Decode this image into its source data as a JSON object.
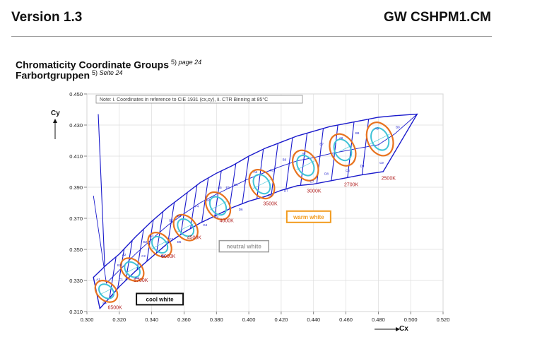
{
  "header": {
    "version": "Version 1.3",
    "document": "GW CSHPM1.CM"
  },
  "section": {
    "title_en": "Chromaticity Coordinate Groups",
    "ref_en_num": "5)",
    "ref_en_page": "page 24",
    "title_de": "Farbortgruppen",
    "ref_de_num": "5)",
    "ref_de_page": "Seite 24"
  },
  "chart_data": {
    "type": "scatter",
    "note": "Note: i. Coordinates in reference to CIE 1931 (cx,cy), ii. CTR Binning at 85°C",
    "xlabel": "Cx",
    "ylabel": "Cy",
    "xlim": [
      0.3,
      0.52
    ],
    "ylim": [
      0.31,
      0.45
    ],
    "x_ticks": [
      "0.300",
      "0.320",
      "0.340",
      "0.360",
      "0.380",
      "0.400",
      "0.420",
      "0.440",
      "0.460",
      "0.480",
      "0.500",
      "0.520"
    ],
    "y_ticks": [
      "0.310",
      "0.330",
      "0.350",
      "0.370",
      "0.390",
      "0.410",
      "0.430",
      "0.450"
    ],
    "grid": true,
    "colors": {
      "bin_outline": "#1a1acc",
      "outer_ellipse": "#e8731f",
      "inner_ellipse": "#3fc3d6",
      "label": "#b22222",
      "warm_box": "#f29b1e",
      "neutral_box": "#9a9a9a",
      "cool_box": "#111111"
    },
    "outline": {
      "top": [
        [
          0.304,
          0.332
        ],
        [
          0.312,
          0.34
        ],
        [
          0.32,
          0.347
        ],
        [
          0.33,
          0.358
        ],
        [
          0.34,
          0.368
        ],
        [
          0.35,
          0.377
        ],
        [
          0.36,
          0.385
        ],
        [
          0.37,
          0.393
        ],
        [
          0.38,
          0.399
        ],
        [
          0.39,
          0.404
        ],
        [
          0.4,
          0.41
        ],
        [
          0.41,
          0.415
        ],
        [
          0.42,
          0.419
        ],
        [
          0.43,
          0.423
        ],
        [
          0.44,
          0.426
        ],
        [
          0.45,
          0.429
        ],
        [
          0.46,
          0.431
        ],
        [
          0.47,
          0.433
        ],
        [
          0.48,
          0.435
        ],
        [
          0.49,
          0.436
        ],
        [
          0.504,
          0.437
        ]
      ],
      "bottom": [
        [
          0.308,
          0.312
        ],
        [
          0.315,
          0.32
        ],
        [
          0.32,
          0.326
        ],
        [
          0.33,
          0.336
        ],
        [
          0.34,
          0.345
        ],
        [
          0.35,
          0.354
        ],
        [
          0.36,
          0.361
        ],
        [
          0.37,
          0.367
        ],
        [
          0.38,
          0.372
        ],
        [
          0.39,
          0.377
        ],
        [
          0.4,
          0.381
        ],
        [
          0.41,
          0.384
        ],
        [
          0.42,
          0.388
        ],
        [
          0.43,
          0.391
        ],
        [
          0.44,
          0.392
        ],
        [
          0.45,
          0.394
        ],
        [
          0.46,
          0.396
        ],
        [
          0.47,
          0.398
        ],
        [
          0.483,
          0.4
        ],
        [
          0.504,
          0.437
        ]
      ]
    },
    "dividers_x": [
      0.311,
      0.318,
      0.323,
      0.328,
      0.335,
      0.341,
      0.347,
      0.354,
      0.362,
      0.368,
      0.375,
      0.383,
      0.392,
      0.4,
      0.409,
      0.418,
      0.427,
      0.436,
      0.446,
      0.455,
      0.465,
      0.474
    ],
    "groups": [
      {
        "cct": "6500K",
        "cx": 0.312,
        "cy": 0.323
      },
      {
        "cct": "5700K",
        "cx": 0.328,
        "cy": 0.337
      },
      {
        "cct": "5000K",
        "cx": 0.345,
        "cy": 0.353
      },
      {
        "cct": "4500K",
        "cx": 0.361,
        "cy": 0.364
      },
      {
        "cct": "4000K",
        "cx": 0.381,
        "cy": 0.378
      },
      {
        "cct": "3500K",
        "cx": 0.408,
        "cy": 0.392
      },
      {
        "cct": "3000K",
        "cx": 0.435,
        "cy": 0.404
      },
      {
        "cct": "2700K",
        "cx": 0.458,
        "cy": 0.414
      },
      {
        "cct": "2500K",
        "cx": 0.481,
        "cy": 0.421
      }
    ],
    "bin_labels": [
      {
        "t": "A1",
        "cx": 0.307,
        "cy": 0.33
      },
      {
        "t": "D1",
        "cx": 0.311,
        "cy": 0.315
      },
      {
        "t": "B1",
        "cx": 0.32,
        "cy": 0.339
      },
      {
        "t": "C1",
        "cx": 0.321,
        "cy": 0.33
      },
      {
        "t": "A2",
        "cx": 0.323,
        "cy": 0.346
      },
      {
        "t": "D2",
        "cx": 0.331,
        "cy": 0.331
      },
      {
        "t": "B2",
        "cx": 0.336,
        "cy": 0.354
      },
      {
        "t": "C2",
        "cx": 0.335,
        "cy": 0.345
      },
      {
        "t": "A3",
        "cx": 0.34,
        "cy": 0.358
      },
      {
        "t": "D3",
        "cx": 0.347,
        "cy": 0.345
      },
      {
        "t": "B3",
        "cx": 0.352,
        "cy": 0.368
      },
      {
        "t": "C3",
        "cx": 0.352,
        "cy": 0.356
      },
      {
        "t": "E4",
        "cx": 0.357,
        "cy": 0.371
      },
      {
        "t": "D5",
        "cx": 0.357,
        "cy": 0.354
      },
      {
        "t": "F4",
        "cx": 0.368,
        "cy": 0.377
      },
      {
        "t": "B4",
        "cx": 0.375,
        "cy": 0.381
      },
      {
        "t": "G4",
        "cx": 0.373,
        "cy": 0.365
      },
      {
        "t": "C4",
        "cx": 0.38,
        "cy": 0.37
      },
      {
        "t": "A5",
        "cx": 0.382,
        "cy": 0.389
      },
      {
        "t": "E5",
        "cx": 0.387,
        "cy": 0.389
      },
      {
        "t": "B5",
        "cx": 0.392,
        "cy": 0.391
      },
      {
        "t": "D6",
        "cx": 0.395,
        "cy": 0.375
      },
      {
        "t": "A6",
        "cx": 0.404,
        "cy": 0.399
      },
      {
        "t": "F6",
        "cx": 0.414,
        "cy": 0.4
      },
      {
        "t": "B6",
        "cx": 0.422,
        "cy": 0.407
      },
      {
        "t": "C6",
        "cx": 0.413,
        "cy": 0.384
      },
      {
        "t": "D7",
        "cx": 0.423,
        "cy": 0.387
      },
      {
        "t": "A7",
        "cx": 0.434,
        "cy": 0.411
      },
      {
        "t": "B7",
        "cx": 0.445,
        "cy": 0.417
      },
      {
        "t": "C7",
        "cx": 0.439,
        "cy": 0.393
      },
      {
        "t": "D8",
        "cx": 0.448,
        "cy": 0.398
      },
      {
        "t": "A8",
        "cx": 0.457,
        "cy": 0.421
      },
      {
        "t": "B8",
        "cx": 0.467,
        "cy": 0.424
      },
      {
        "t": "C8",
        "cx": 0.461,
        "cy": 0.4
      },
      {
        "t": "D9",
        "cx": 0.47,
        "cy": 0.403
      },
      {
        "t": "A9",
        "cx": 0.479,
        "cy": 0.427
      },
      {
        "t": "B9",
        "cx": 0.492,
        "cy": 0.428
      },
      {
        "t": "C9",
        "cx": 0.482,
        "cy": 0.405
      }
    ],
    "region_labels": [
      {
        "text": "warm white",
        "cx": 0.437,
        "cy": 0.371
      },
      {
        "text": "neutral white",
        "cx": 0.397,
        "cy": 0.352
      },
      {
        "text": "cool white",
        "cx": 0.345,
        "cy": 0.318
      }
    ]
  }
}
